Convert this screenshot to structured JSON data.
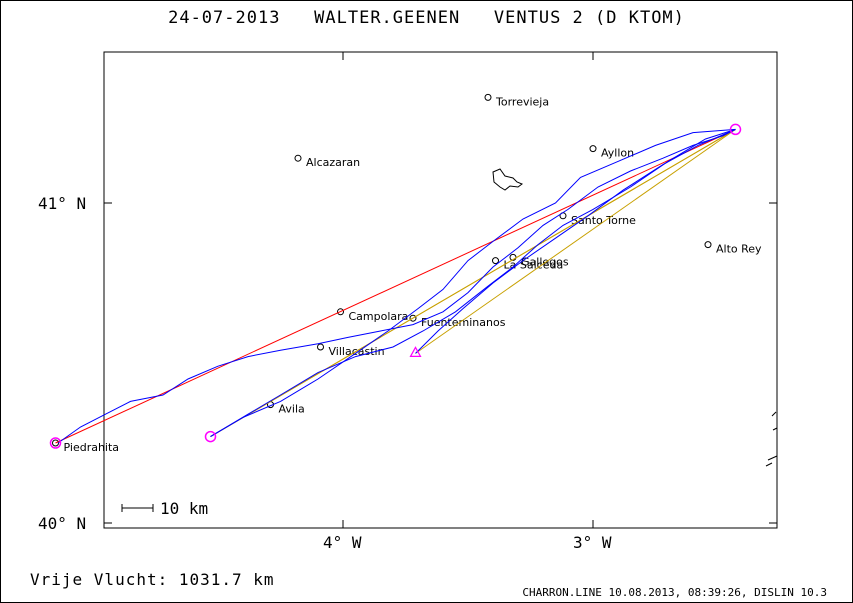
{
  "title": "24-07-2013   WALTER.GEENEN   VENTUS 2 (D KTOM)",
  "summary": "Vrije Vlucht: 1031.7 km",
  "footer": "CHARRON.LINE 10.08.2013, 08:39:26, DISLIN 10.3",
  "scale_label": "10 km",
  "axes": {
    "lat_ticks": [
      "41° N",
      "40° N"
    ],
    "lon_ticks": [
      "4° W",
      "3° W"
    ]
  },
  "places": [
    {
      "name": "Torrevieja",
      "lon": -3.42,
      "lat": 41.33
    },
    {
      "name": "Ayllon",
      "lon": -3.0,
      "lat": 41.17
    },
    {
      "name": "Alcazaran",
      "lon": -4.18,
      "lat": 41.14
    },
    {
      "name": "Santo Torne",
      "lon": -3.12,
      "lat": 40.96
    },
    {
      "name": "Alto Rey",
      "lon": -2.54,
      "lat": 40.87
    },
    {
      "name": "La Salceda",
      "lon": -3.39,
      "lat": 40.82
    },
    {
      "name": "Gallegos",
      "lon": -3.32,
      "lat": 40.83
    },
    {
      "name": "Campolara",
      "lon": -4.01,
      "lat": 40.66
    },
    {
      "name": "Fuenteminanos",
      "lon": -3.72,
      "lat": 40.64
    },
    {
      "name": "Villacastin",
      "lon": -4.09,
      "lat": 40.55
    },
    {
      "name": "Avila",
      "lon": -4.29,
      "lat": 40.37
    },
    {
      "name": "Piedrahita",
      "lon": -5.15,
      "lat": 40.25
    }
  ],
  "turnpoints": [
    {
      "lon": -5.15,
      "lat": 40.25
    },
    {
      "lon": -2.43,
      "lat": 41.23
    },
    {
      "lon": -4.53,
      "lat": 40.27
    },
    {
      "lon": -2.43,
      "lat": 41.23
    },
    {
      "lon": -3.71,
      "lat": 40.53
    }
  ],
  "colors": {
    "track": "#0000ff",
    "task_line": "#ff0000",
    "leg_line": "#c8a000",
    "turnpoint": "#ff00ff",
    "frame": "#000000"
  }
}
